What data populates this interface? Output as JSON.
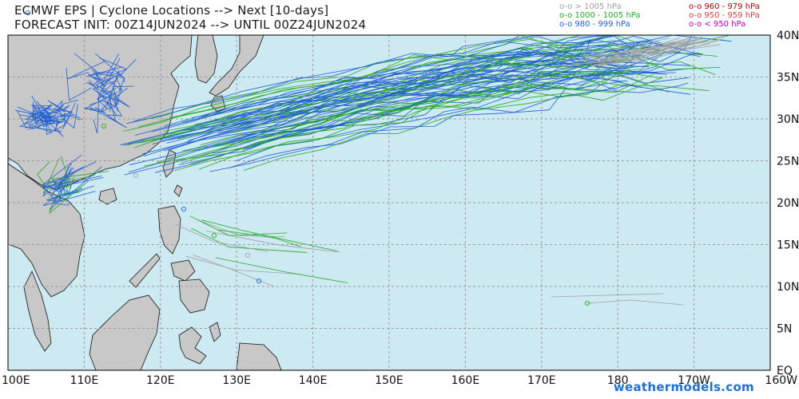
{
  "header": {
    "title_line1": "ECMWF EPS | Cyclone Locations --> Next [10-days]",
    "title_line2": "FORECAST INIT: 00Z14JUN2024 --> UNTIL 00Z24JUN2024"
  },
  "legend": [
    {
      "label": "o-o > 1005 hPa",
      "color": "#a0a0a0"
    },
    {
      "label": "o-o 1000 - 1005 hPa",
      "color": "#22aa22"
    },
    {
      "label": "o-o 980 - 999 hPa",
      "color": "#1f5fd0"
    },
    {
      "label": "o-o 960 - 979 hPa",
      "color": "#b00000"
    },
    {
      "label": "o-o 950 - 959 hPa",
      "color": "#d04040"
    },
    {
      "label": "o-o < 950 hPa",
      "color": "#b000b0"
    }
  ],
  "axes": {
    "lon_labels": [
      "100E",
      "110E",
      "120E",
      "130E",
      "140E",
      "150E",
      "160E",
      "170E",
      "180",
      "170W",
      "160W"
    ],
    "lat_labels": [
      "40N",
      "35N",
      "30N",
      "25N",
      "20N",
      "15N",
      "10N",
      "5N",
      "EQ"
    ]
  },
  "colors": {
    "ocean": "#cde9f2",
    "land": "#c8c8c8",
    "grid": "#9a9a9a"
  },
  "brand": "weathermodels.com"
}
